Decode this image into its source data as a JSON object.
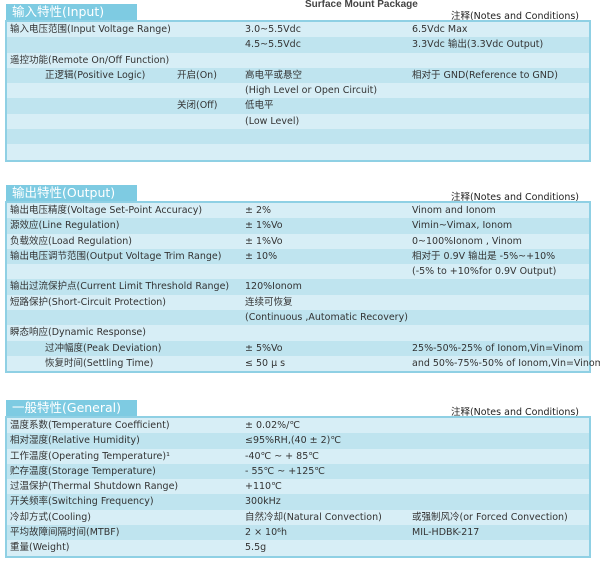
{
  "top_text": "Surface Mount Package",
  "sections": [
    {
      "title": "输入特性(Input)",
      "notes": "注释(Notes and Conditions)",
      "rows": [
        [
          "输入电压范围(Input Voltage Range)",
          "",
          "",
          "3.0~5.5Vdc",
          "6.5Vdc Max"
        ],
        [
          "",
          "",
          "",
          "4.5~5.5Vdc",
          "3.3Vdc 输出(3.3Vdc Output)"
        ],
        [
          "遥控功能(Remote On/Off Function)",
          "",
          "",
          "",
          ""
        ],
        [
          "",
          "正逻辑(Positive Logic)",
          "开启(On)",
          "高电平或悬空",
          "相对于 GND(Reference to GND)"
        ],
        [
          "",
          "",
          "",
          "(High Level or Open Circuit)",
          ""
        ],
        [
          "",
          "",
          "关闭(Off)",
          "低电平",
          ""
        ],
        [
          "",
          "",
          "",
          "(Low Level)",
          ""
        ],
        [
          "",
          "",
          "",
          "",
          ""
        ],
        [
          "",
          "",
          "",
          "",
          ""
        ]
      ]
    },
    {
      "title": "输出特性(Output)",
      "notes": "注释(Notes and Conditions)",
      "rows": [
        [
          "输出电压精度(Voltage Set-Point Accuracy)",
          "",
          "",
          "± 2%",
          "Vinom and Ionom"
        ],
        [
          "源效应(Line Regulation)",
          "",
          "",
          "± 1%Vo",
          "Vimin~Vimax, Ionom"
        ],
        [
          "负载效应(Load Regulation)",
          "",
          "",
          "± 1%Vo",
          "0~100%Ionom , Vinom"
        ],
        [
          "输出电压调节范围(Output Voltage Trim Range)",
          "",
          "",
          "± 10%",
          "相对于 0.9V 输出是 -5%~+10%"
        ],
        [
          "",
          "",
          "",
          "",
          "(-5% to +10%for 0.9V Output)"
        ],
        [
          "输出过流保护点(Current Limit Threshold Range)",
          "",
          "",
          "120%Ionom",
          ""
        ],
        [
          "短路保护(Short-Circuit Protection)",
          "",
          "",
          "连续可恢复",
          ""
        ],
        [
          "",
          "",
          "",
          "(Continuous ,Automatic Recovery)",
          ""
        ],
        [
          "瞬态响应(Dynamic Response)",
          "",
          "",
          "",
          ""
        ],
        [
          "",
          "过冲幅度(Peak Deviation)",
          "",
          "± 5%Vo",
          "25%-50%-25% of  Ionom,Vin=Vinom"
        ],
        [
          "",
          "恢复时间(Settling Time)",
          "",
          "≤ 50 µ s",
          "and 50%-75%-50% of Ionom,Vin=Vinom"
        ]
      ]
    },
    {
      "title": "一般特性(General)",
      "notes": "注释(Notes and Conditions)",
      "rows": [
        [
          "温度系数(Temperature Coefficient)",
          "",
          "",
          "± 0.02%/℃",
          ""
        ],
        [
          "相对湿度(Relative Humidity)",
          "",
          "",
          "≤95%RH,(40 ± 2)℃",
          ""
        ],
        [
          "工作温度(Operating Temperature)¹",
          "",
          "",
          "-40℃  ~ + 85℃",
          ""
        ],
        [
          "贮存温度(Storage Temperature)",
          "",
          "",
          "- 55℃  ~ +125℃",
          ""
        ],
        [
          "过温保护(Thermal Shutdown Range)",
          "",
          "",
          "+110℃",
          ""
        ],
        [
          "开关频率(Switching Frequency)",
          "",
          "",
          "300kHz",
          ""
        ],
        [
          "冷却方式(Cooling)",
          "",
          "",
          "自然冷却(Natural Convection)",
          "或强制风冷(or Forced Convection)"
        ],
        [
          "平均故障间隔时间(MTBF)",
          "",
          "",
          "2 × 10⁶h",
          "MIL-HDBK-217"
        ],
        [
          "重量(Weight)",
          "",
          "",
          "5.5g",
          ""
        ]
      ]
    }
  ]
}
